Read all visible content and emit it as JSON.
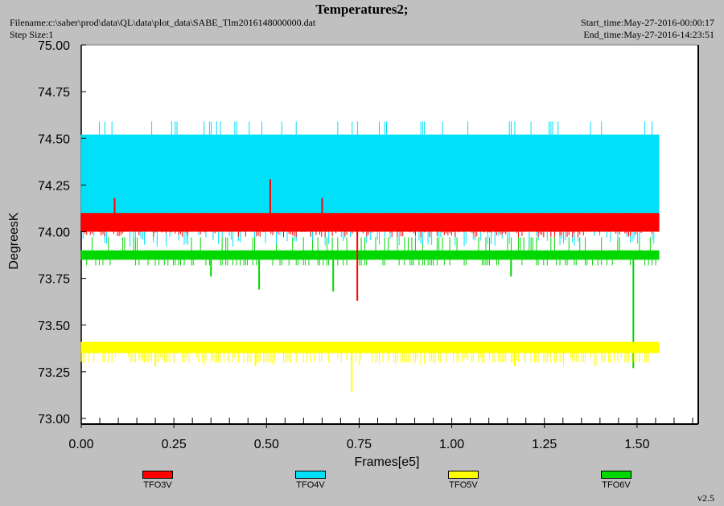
{
  "header": {
    "title": "Temperatures2;",
    "filename": "Filename:c:\\saber\\prod\\data\\QL\\data\\plot_data\\SABE_Tlm2016148000000.dat",
    "step_size": "Step Size:1",
    "start_time": "Start_time:May-27-2016-00:00:17",
    "end_time": "End_time:May-27-2016-14:23:51"
  },
  "version": "v2.5",
  "chart_data": {
    "type": "line",
    "title": "Temperatures2;",
    "xlabel": "Frames[e5]",
    "ylabel": "DegreesK",
    "xlim": [
      0.0,
      1.65
    ],
    "ylim": [
      73.0,
      75.0
    ],
    "xticks": [
      "0.00",
      "0.25",
      "0.50",
      "0.75",
      "1.00",
      "1.25",
      "1.50"
    ],
    "yticks": [
      "73.00",
      "73.25",
      "73.50",
      "73.75",
      "74.00",
      "74.25",
      "74.50",
      "74.75",
      "75.00"
    ],
    "x_data_max": 1.56,
    "legend_position": "bottom",
    "series": [
      {
        "name": "TFO3V",
        "color": "#ff0000",
        "typical_range": [
          74.0,
          74.1
        ],
        "spikes": [
          {
            "x": 0.745,
            "y": 73.63
          },
          {
            "x": 0.51,
            "y": 74.28
          },
          {
            "x": 0.65,
            "y": 74.18
          },
          {
            "x": 0.09,
            "y": 74.18
          }
        ]
      },
      {
        "name": "TFO4V",
        "color": "#00e0f8",
        "typical_range": [
          74.05,
          74.52
        ],
        "upper_spike": 74.59,
        "lower_spike": 73.92
      },
      {
        "name": "TFO5V",
        "color": "#ffff00",
        "typical_range": [
          73.35,
          73.41
        ],
        "spikes": [
          {
            "x": 0.73,
            "y": 73.14
          },
          {
            "x": 0.47,
            "y": 73.28
          },
          {
            "x": 0.2,
            "y": 73.28
          },
          {
            "x": 1.17,
            "y": 73.28
          }
        ]
      },
      {
        "name": "TFO6V",
        "color": "#00d800",
        "typical_range": [
          73.85,
          73.9
        ],
        "spikes": [
          {
            "x": 1.49,
            "y": 73.27
          },
          {
            "x": 0.35,
            "y": 73.76
          },
          {
            "x": 0.48,
            "y": 73.69
          },
          {
            "x": 0.68,
            "y": 73.68
          },
          {
            "x": 1.16,
            "y": 73.76
          }
        ]
      }
    ]
  }
}
